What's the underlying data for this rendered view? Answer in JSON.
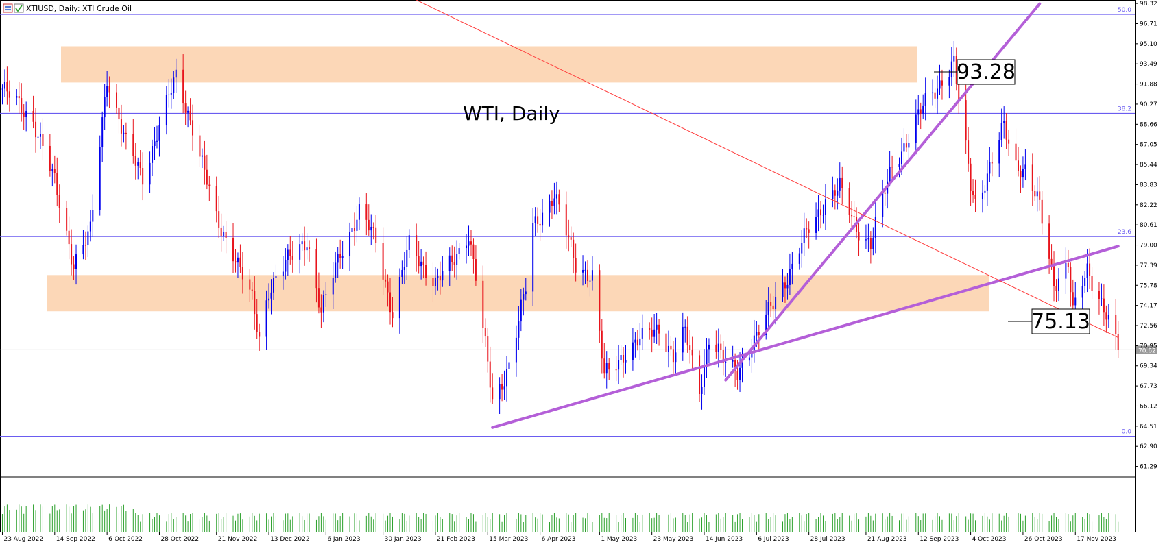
{
  "header": {
    "symbol": "XTIUSD, Daily: XTI Crude Oil"
  },
  "annotations": {
    "chart_label": "WTI, Daily",
    "upper_level_label": "93.28",
    "lower_level_label": "75.13"
  },
  "fib_levels": [
    {
      "label": "50.0",
      "price": 97.45
    },
    {
      "label": "38.2",
      "price": 89.53
    },
    {
      "label": "23.6",
      "price": 79.68
    },
    {
      "label": "0.0",
      "price": 63.7
    }
  ],
  "colors": {
    "bull": "#0000ee",
    "bear": "#e8141c",
    "fib": "#6a5cf0",
    "trend": "#b45fd8",
    "diag": "#ff3a3a",
    "zone": "#fcd7b7",
    "volume": "#2aa02a",
    "current": "#c8c8c8",
    "axis": "#000000"
  },
  "chart_data": {
    "type": "candlestick",
    "y_ticks": [
      "98.32",
      "96.71",
      "95.10",
      "93.49",
      "91.88",
      "90.27",
      "88.66",
      "87.05",
      "85.44",
      "83.83",
      "82.22",
      "80.61",
      "79.00",
      "77.39",
      "75.78",
      "74.17",
      "72.56",
      "70.95",
      "69.34",
      "67.73",
      "66.12",
      "64.51",
      "62.90",
      "61.29"
    ],
    "x_ticks": [
      "23 Aug 2022",
      "14 Sep 2022",
      "6 Oct 2022",
      "28 Oct 2022",
      "21 Nov 2022",
      "13 Dec 2022",
      "6 Jan 2023",
      "30 Jan 2023",
      "21 Feb 2023",
      "15 Mar 2023",
      "6 Apr 2023",
      "1 May 2023",
      "23 May 2023",
      "14 Jun 2023",
      "6 Jul 2023",
      "28 Jul 2023",
      "21 Aug 2023",
      "12 Sep 2023",
      "4 Oct 2023",
      "26 Oct 2023",
      "17 Nov 2023"
    ],
    "price_range": [
      60.5,
      98.6
    ],
    "current_price": 70.62,
    "current_price_label": "70.62",
    "zones": [
      {
        "top": 94.9,
        "bottom": 92.0
      },
      {
        "top": 76.6,
        "bottom": 73.7
      }
    ],
    "anchors": [
      {
        "date": "23 Aug 2022",
        "price": 91.5
      },
      {
        "date": "5 Sep 2022",
        "price": 89.0
      },
      {
        "date": "14 Sep 2022",
        "price": 84.0
      },
      {
        "date": "22 Sep 2022",
        "price": 77.5
      },
      {
        "date": "29 Sep 2022",
        "price": 80.0
      },
      {
        "date": "6 Oct 2022",
        "price": 92.5
      },
      {
        "date": "14 Oct 2022",
        "price": 87.0
      },
      {
        "date": "21 Oct 2022",
        "price": 84.5
      },
      {
        "date": "28 Oct 2022",
        "price": 88.5
      },
      {
        "date": "4 Nov 2022",
        "price": 92.5
      },
      {
        "date": "11 Nov 2022",
        "price": 88.5
      },
      {
        "date": "21 Nov 2022",
        "price": 81.0
      },
      {
        "date": "28 Nov 2022",
        "price": 78.5
      },
      {
        "date": "6 Dec 2022",
        "price": 74.5
      },
      {
        "date": "9 Dec 2022",
        "price": 71.5
      },
      {
        "date": "13 Dec 2022",
        "price": 75.5
      },
      {
        "date": "20 Dec 2022",
        "price": 77.5
      },
      {
        "date": "29 Dec 2022",
        "price": 79.5
      },
      {
        "date": "4 Jan 2023",
        "price": 73.5
      },
      {
        "date": "12 Jan 2023",
        "price": 78.5
      },
      {
        "date": "20 Jan 2023",
        "price": 81.5
      },
      {
        "date": "27 Jan 2023",
        "price": 79.5
      },
      {
        "date": "3 Feb 2023",
        "price": 73.5
      },
      {
        "date": "10 Feb 2023",
        "price": 79.0
      },
      {
        "date": "21 Feb 2023",
        "price": 76.0
      },
      {
        "date": "28 Feb 2023",
        "price": 77.5
      },
      {
        "date": "7 Mar 2023",
        "price": 80.0
      },
      {
        "date": "10 Mar 2023",
        "price": 76.5
      },
      {
        "date": "17 Mar 2023",
        "price": 66.5
      },
      {
        "date": "20 Mar 2023",
        "price": 67.5
      },
      {
        "date": "24 Mar 2023",
        "price": 69.5
      },
      {
        "date": "31 Mar 2023",
        "price": 75.5
      },
      {
        "date": "3 Apr 2023",
        "price": 80.5
      },
      {
        "date": "12 Apr 2023",
        "price": 83.0
      },
      {
        "date": "21 Apr 2023",
        "price": 77.5
      },
      {
        "date": "28 Apr 2023",
        "price": 76.5
      },
      {
        "date": "3 May 2023",
        "price": 68.5
      },
      {
        "date": "12 May 2023",
        "price": 70.5
      },
      {
        "date": "19 May 2023",
        "price": 71.5
      },
      {
        "date": "26 May 2023",
        "price": 72.5
      },
      {
        "date": "1 Jun 2023",
        "price": 70.0
      },
      {
        "date": "6 Jun 2023",
        "price": 72.0
      },
      {
        "date": "12 Jun 2023",
        "price": 67.5
      },
      {
        "date": "16 Jun 2023",
        "price": 71.5
      },
      {
        "date": "23 Jun 2023",
        "price": 69.5
      },
      {
        "date": "28 Jun 2023",
        "price": 69.0
      },
      {
        "date": "6 Jul 2023",
        "price": 71.5
      },
      {
        "date": "14 Jul 2023",
        "price": 75.0
      },
      {
        "date": "21 Jul 2023",
        "price": 77.0
      },
      {
        "date": "28 Jul 2023",
        "price": 80.5
      },
      {
        "date": "4 Aug 2023",
        "price": 82.5
      },
      {
        "date": "10 Aug 2023",
        "price": 83.5
      },
      {
        "date": "17 Aug 2023",
        "price": 80.5
      },
      {
        "date": "23 Aug 2023",
        "price": 79.0
      },
      {
        "date": "1 Sep 2023",
        "price": 85.5
      },
      {
        "date": "8 Sep 2023",
        "price": 87.5
      },
      {
        "date": "15 Sep 2023",
        "price": 90.5
      },
      {
        "date": "19 Sep 2023",
        "price": 91.5
      },
      {
        "date": "27 Sep 2023",
        "price": 93.5
      },
      {
        "date": "29 Sep 2023",
        "price": 90.5
      },
      {
        "date": "4 Oct 2023",
        "price": 84.0
      },
      {
        "date": "6 Oct 2023",
        "price": 82.5
      },
      {
        "date": "11 Oct 2023",
        "price": 84.5
      },
      {
        "date": "18 Oct 2023",
        "price": 88.5
      },
      {
        "date": "23 Oct 2023",
        "price": 85.5
      },
      {
        "date": "27 Oct 2023",
        "price": 85.0
      },
      {
        "date": "2 Nov 2023",
        "price": 82.0
      },
      {
        "date": "8 Nov 2023",
        "price": 76.0
      },
      {
        "date": "14 Nov 2023",
        "price": 77.5
      },
      {
        "date": "16 Nov 2023",
        "price": 73.5
      },
      {
        "date": "22 Nov 2023",
        "price": 77.0
      },
      {
        "date": "27 Nov 2023",
        "price": 75.0
      },
      {
        "date": "30 Nov 2023",
        "price": 73.5
      },
      {
        "date": "5 Dec 2023",
        "price": 70.6
      }
    ],
    "trendlines": [
      {
        "name": "rising support",
        "from": {
          "date": "17 Mar 2023",
          "price": 64.4
        },
        "to": {
          "date": "5 Dec 2023",
          "price": 78.9
        }
      },
      {
        "name": "steep uptrend",
        "from": {
          "date": "23 Jun 2023",
          "price": 68.2
        },
        "to": {
          "date": "2 Nov 2023",
          "price": 98.3
        }
      },
      {
        "name": "descending line",
        "from": {
          "date": "13 Feb 2023",
          "price": 98.6
        },
        "to": {
          "date": "5 Dec 2023",
          "price": 71.6
        }
      }
    ]
  }
}
